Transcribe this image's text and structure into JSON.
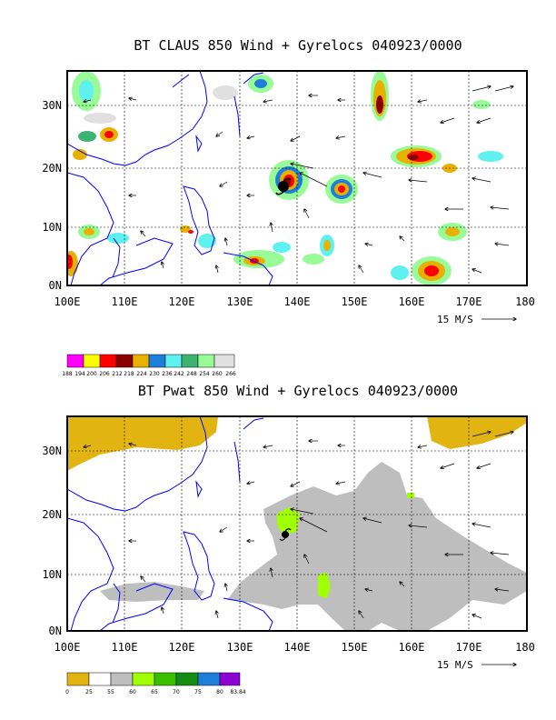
{
  "panels": [
    {
      "title": "BT CLAUS 850 Wind + Gyrelocs 040923/0000",
      "lat_labels": [
        "0N",
        "10N",
        "20N",
        "30N"
      ],
      "lon_labels": [
        "100E",
        "110E",
        "120E",
        "130E",
        "140E",
        "150E",
        "160E",
        "170E",
        "180"
      ],
      "scale_label": "15 M/S",
      "colorbar": {
        "colors": [
          "#ff00ff",
          "#ffff00",
          "#ff0000",
          "#8b0000",
          "#e8b000",
          "#1e7fd8",
          "#5ff0f0",
          "#3cb371",
          "#98fb98",
          "#e0e0e0"
        ],
        "labels": [
          "188",
          "194",
          "200",
          "206",
          "212",
          "218",
          "224",
          "230",
          "236",
          "242",
          "248",
          "254",
          "260",
          "266"
        ]
      }
    },
    {
      "title": "BT Pwat 850 Wind + Gyrelocs 040923/0000",
      "lat_labels": [
        "0N",
        "10N",
        "20N",
        "30N"
      ],
      "lon_labels": [
        "100E",
        "110E",
        "120E",
        "130E",
        "140E",
        "150E",
        "160E",
        "170E",
        "180"
      ],
      "scale_label": "15 M/S",
      "colorbar": {
        "colors": [
          "#e2b412",
          "#ffffff",
          "#bebebe",
          "#a0ff00",
          "#3cbe00",
          "#148c14",
          "#1e7fd8",
          "#8c00d2"
        ],
        "labels": [
          "0",
          "25",
          "55",
          "60",
          "65",
          "70",
          "75",
          "80",
          "83.84"
        ]
      }
    }
  ],
  "colors": {
    "coastline": "#0000ff",
    "grid": "#000000",
    "typhoon_symbol": "#000000"
  },
  "icons": [
    "typhoon-symbol-icon",
    "wind-arrow-icon",
    "scale-arrow-icon"
  ]
}
